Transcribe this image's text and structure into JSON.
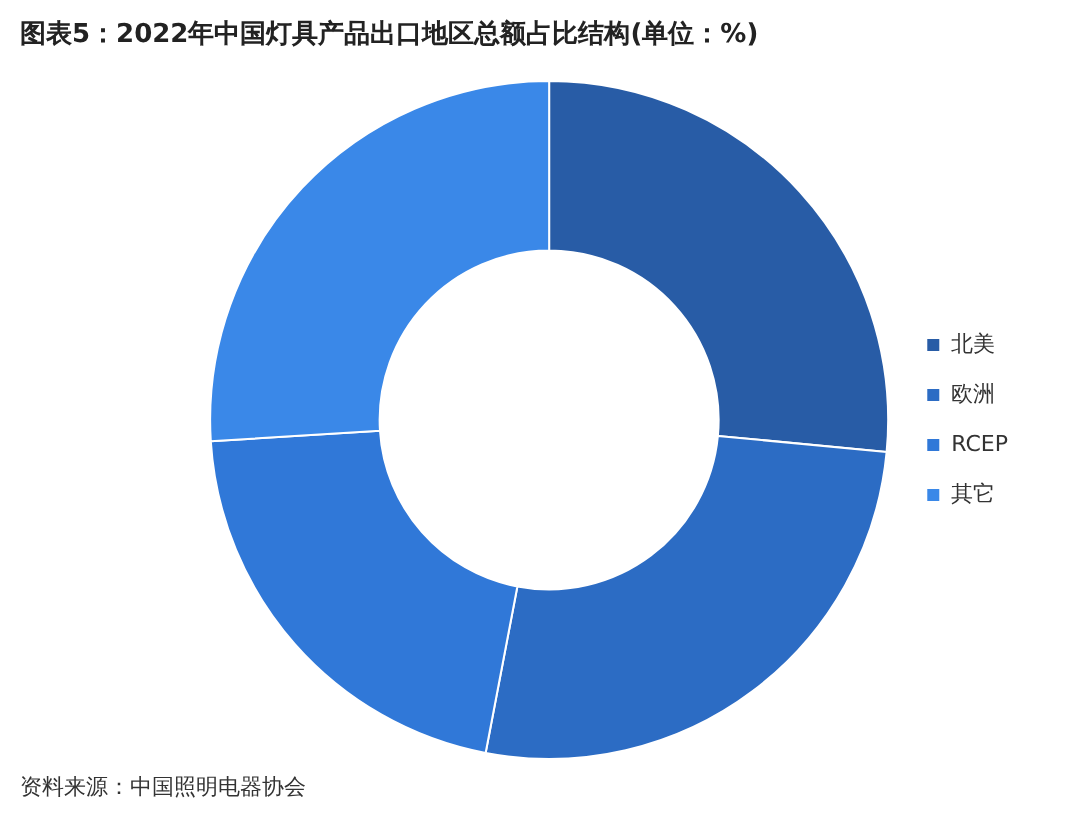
{
  "chart_data": {
    "type": "donut",
    "title": "图表5：2022年中国灯具产品出口地区总额占比结构(单位：%)",
    "categories": [
      "北美",
      "欧洲",
      "RCEP",
      "其它"
    ],
    "values": [
      26.5,
      26.5,
      21,
      26
    ],
    "colors": [
      "#285ca6",
      "#2c6cc4",
      "#3078d8",
      "#3a88e8"
    ],
    "legend": "right",
    "annotations": [
      "资料来源：中国照明电器协会"
    ]
  }
}
